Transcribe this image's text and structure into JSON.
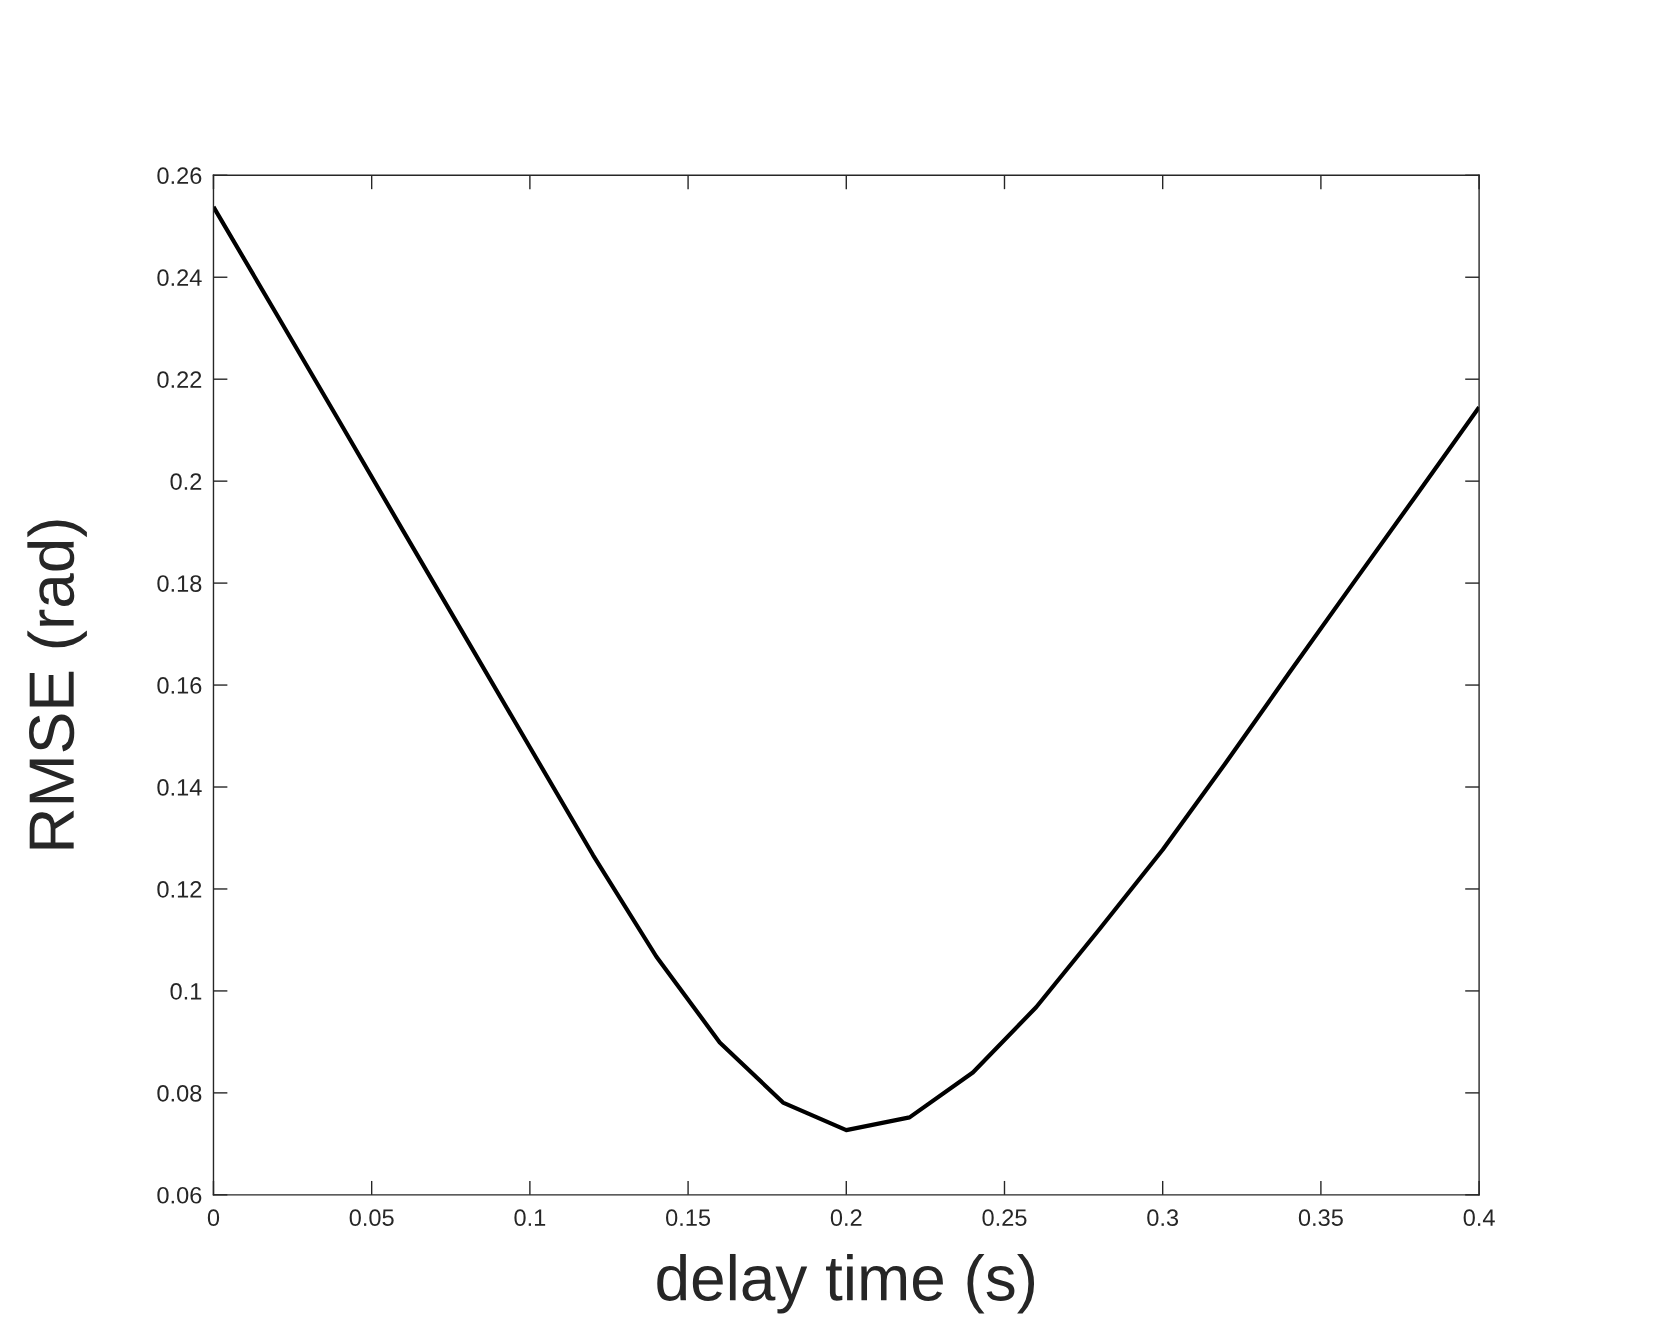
{
  "chart_data": {
    "type": "line",
    "xlabel": "delay time (s)",
    "ylabel": "RMSE (rad)",
    "x": [
      0,
      0.02,
      0.04,
      0.06,
      0.08,
      0.1,
      0.12,
      0.14,
      0.16,
      0.18,
      0.2,
      0.22,
      0.24,
      0.26,
      0.28,
      0.3,
      0.32,
      0.34,
      0.36,
      0.38,
      0.4
    ],
    "series": [
      {
        "color": "#000000",
        "values": [
          0.2538,
          0.2327,
          0.2115,
          0.1902,
          0.169,
          0.1478,
          0.1266,
          0.1067,
          0.0899,
          0.0781,
          0.0727,
          0.0752,
          0.084,
          0.0968,
          0.1121,
          0.1277,
          0.1448,
          0.1624,
          0.1798,
          0.1971,
          0.2145
        ]
      }
    ],
    "xlim": [
      0,
      0.4
    ],
    "ylim": [
      0.06,
      0.26
    ],
    "xticks": [
      0,
      0.05,
      0.1,
      0.15,
      0.2,
      0.25,
      0.3,
      0.35,
      0.4
    ],
    "yticks": [
      0.06,
      0.08,
      0.1,
      0.12,
      0.14,
      0.16,
      0.18,
      0.2,
      0.22,
      0.24,
      0.26
    ],
    "grid": false,
    "marker": "none",
    "line_style": "solid"
  }
}
